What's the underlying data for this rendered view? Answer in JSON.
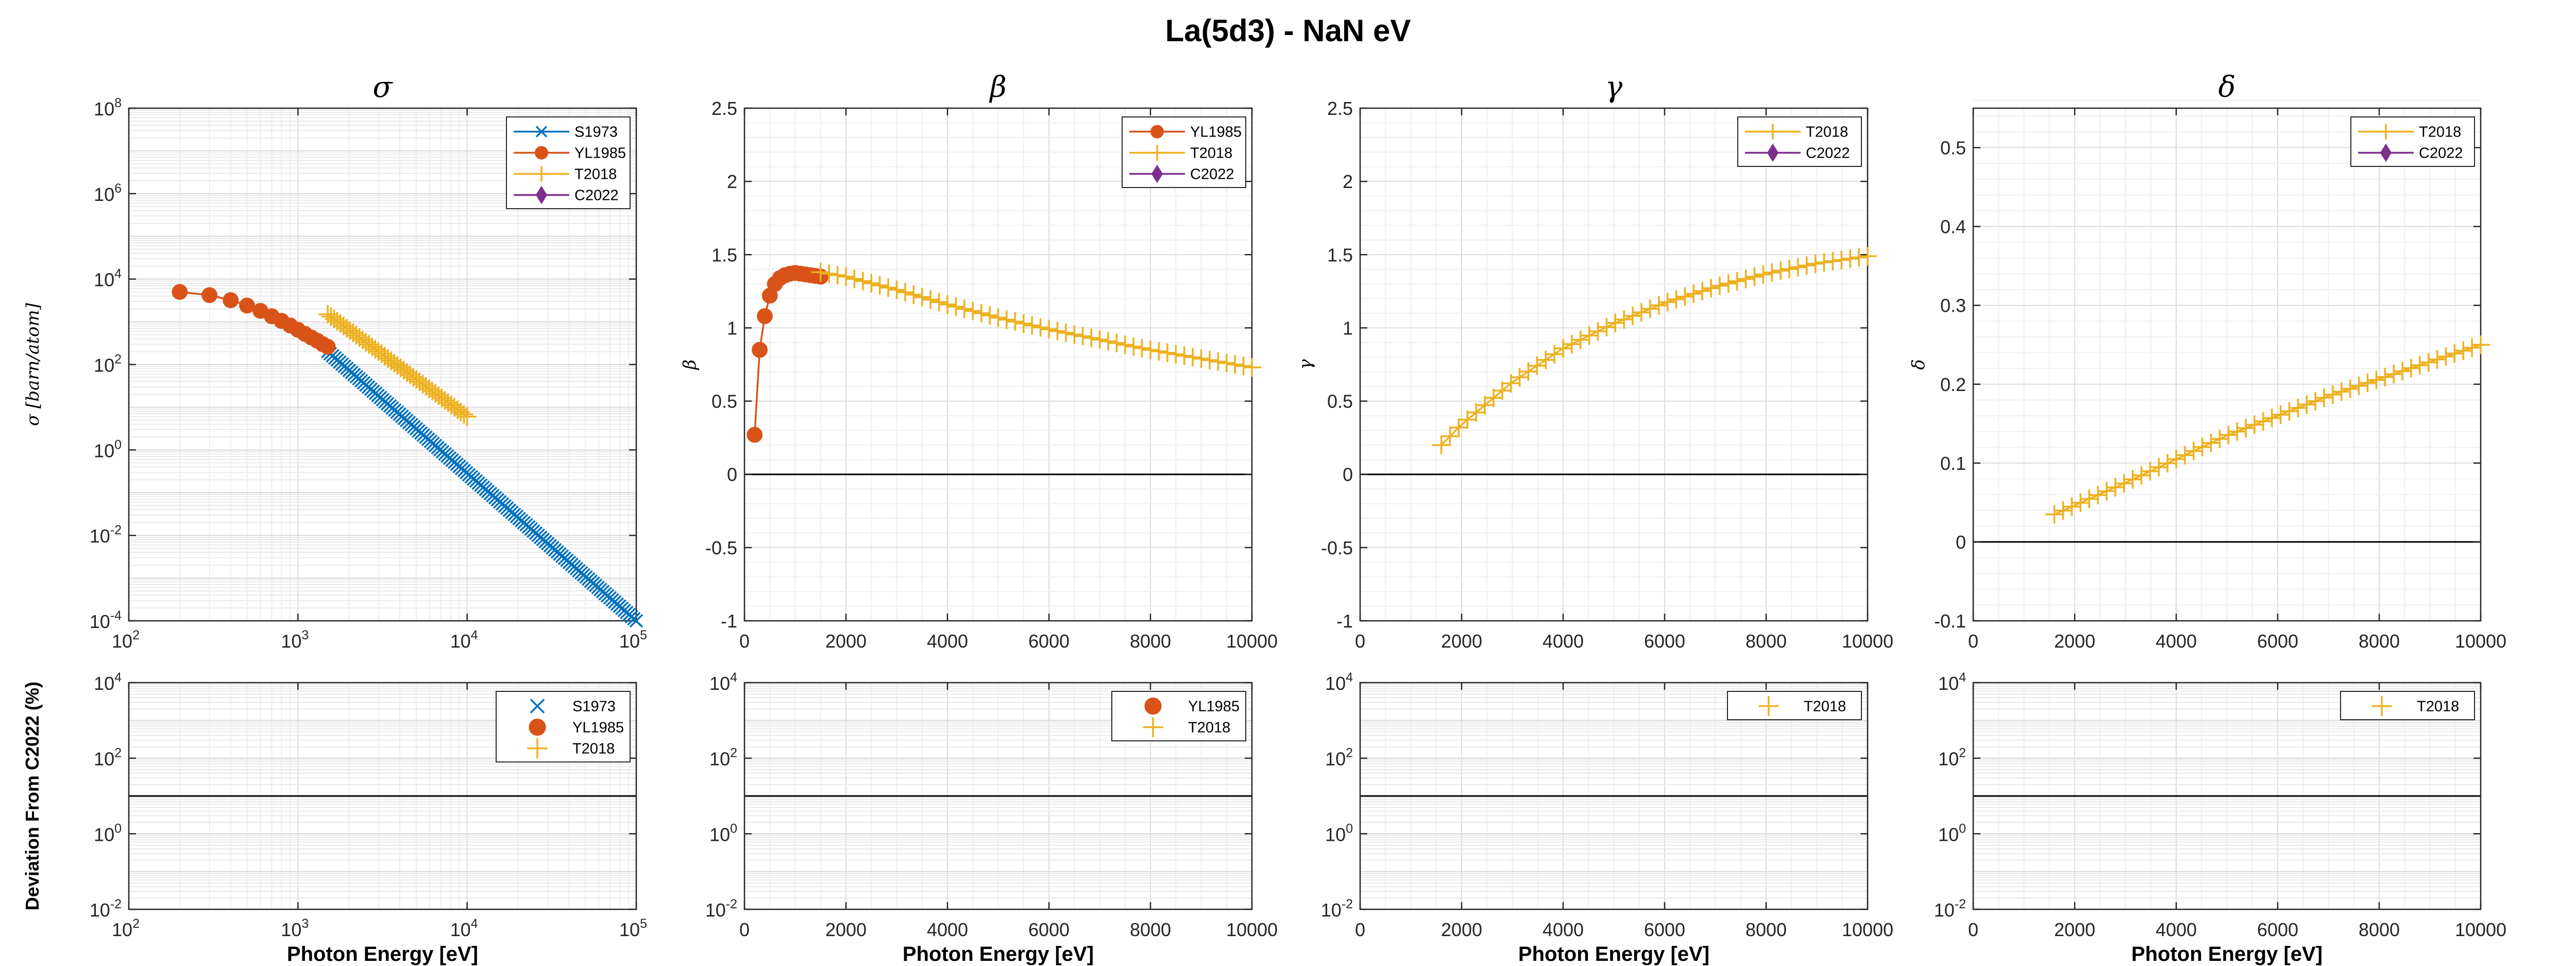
{
  "figure": {
    "title": "La(5d3) - NaN eV"
  },
  "colors": {
    "S1973": "#0072BD",
    "YL1985": "#D95319",
    "T2018": "#EDB120",
    "C2022": "#7E2F8E"
  },
  "chart_data": [
    {
      "id": "sigma",
      "type": "line",
      "title": "σ",
      "ylabel": "σ [barn/atom]",
      "xlabel": "",
      "xscale": "log",
      "yscale": "log",
      "xlim": [
        100,
        100000
      ],
      "ylim": [
        0.0001,
        100000000
      ],
      "xticks": [
        {
          "base": "10",
          "exp": "2"
        },
        {
          "base": "10",
          "exp": "3"
        },
        {
          "base": "10",
          "exp": "4"
        },
        {
          "base": "10",
          "exp": "5"
        }
      ],
      "yticks": [
        {
          "base": "10",
          "exp": "-4"
        },
        {
          "base": "10",
          "exp": "-2"
        },
        {
          "base": "10",
          "exp": "0"
        },
        {
          "base": "10",
          "exp": "2"
        },
        {
          "base": "10",
          "exp": "4"
        },
        {
          "base": "10",
          "exp": "6"
        },
        {
          "base": "10",
          "exp": "8"
        }
      ],
      "grid": true,
      "legend_position": "top-right",
      "series": [
        {
          "name": "S1973",
          "color": "#0072BD",
          "marker": "x",
          "line": true,
          "generator": "powerlaw",
          "x": [
            1500,
            100000
          ],
          "y": [
            200,
            0.0001
          ],
          "n": 130
        },
        {
          "name": "YL1985",
          "color": "#D95319",
          "marker": "o",
          "line": true,
          "x": [
            200,
            300,
            400,
            500,
            600,
            700,
            800,
            900,
            1000,
            1100,
            1200,
            1300,
            1400,
            1500
          ],
          "y": [
            5000,
            4200,
            3200,
            2400,
            1800,
            1350,
            1050,
            820,
            650,
            520,
            430,
            360,
            300,
            260
          ]
        },
        {
          "name": "T2018",
          "color": "#EDB120",
          "marker": "+",
          "line": true,
          "generator": "powerlaw",
          "x": [
            1500,
            10000
          ],
          "y": [
            1500,
            6
          ],
          "n": 45
        },
        {
          "name": "C2022",
          "color": "#7E2F8E",
          "marker": "d",
          "line": true,
          "x": [],
          "y": []
        }
      ]
    },
    {
      "id": "beta",
      "type": "line",
      "title": "β",
      "ylabel": "β",
      "xlabel": "",
      "xscale": "linear",
      "yscale": "linear",
      "xlim": [
        0,
        10000
      ],
      "ylim": [
        -1,
        2.5
      ],
      "xticks": [
        "0",
        "2000",
        "4000",
        "6000",
        "8000",
        "10000"
      ],
      "yticks": [
        "-1",
        "-0.5",
        "0",
        "0.5",
        "1",
        "1.5",
        "2",
        "2.5"
      ],
      "zero_line": 0,
      "grid": true,
      "legend_position": "top-right",
      "series": [
        {
          "name": "YL1985",
          "color": "#D95319",
          "marker": "o",
          "line": true,
          "x": [
            200,
            300,
            400,
            500,
            600,
            700,
            800,
            900,
            1000,
            1100,
            1200,
            1300,
            1400,
            1500
          ],
          "y": [
            0.27,
            0.85,
            1.08,
            1.22,
            1.3,
            1.34,
            1.36,
            1.37,
            1.375,
            1.37,
            1.365,
            1.36,
            1.355,
            1.35
          ]
        },
        {
          "name": "T2018",
          "color": "#EDB120",
          "marker": "+",
          "line": true,
          "generator": "table",
          "xs": [
            1500,
            2000,
            3000,
            4000,
            5000,
            6000,
            7000,
            8000,
            9000,
            10000
          ],
          "ys": [
            1.38,
            1.35,
            1.26,
            1.16,
            1.07,
            0.99,
            0.92,
            0.85,
            0.79,
            0.73
          ],
          "n": 52
        },
        {
          "name": "C2022",
          "color": "#7E2F8E",
          "marker": "d",
          "line": true,
          "x": [],
          "y": []
        }
      ]
    },
    {
      "id": "gamma",
      "type": "line",
      "title": "γ",
      "ylabel": "γ",
      "xlabel": "",
      "xscale": "linear",
      "yscale": "linear",
      "xlim": [
        0,
        10000
      ],
      "ylim": [
        -1,
        2.5
      ],
      "xticks": [
        "0",
        "2000",
        "4000",
        "6000",
        "8000",
        "10000"
      ],
      "yticks": [
        "-1",
        "-0.5",
        "0",
        "0.5",
        "1",
        "1.5",
        "2",
        "2.5"
      ],
      "zero_line": 0,
      "grid": true,
      "legend_position": "top-right",
      "series": [
        {
          "name": "T2018",
          "color": "#EDB120",
          "marker": "+",
          "line": true,
          "generator": "table",
          "xs": [
            1600,
            2000,
            3000,
            4000,
            5000,
            6000,
            7000,
            8000,
            9000,
            10000
          ],
          "ys": [
            0.2,
            0.34,
            0.63,
            0.86,
            1.03,
            1.17,
            1.28,
            1.37,
            1.44,
            1.49
          ],
          "n": 50
        },
        {
          "name": "C2022",
          "color": "#7E2F8E",
          "marker": "d",
          "line": true,
          "x": [],
          "y": []
        }
      ]
    },
    {
      "id": "delta",
      "type": "line",
      "title": "δ",
      "ylabel": "δ",
      "xlabel": "",
      "xscale": "linear",
      "yscale": "linear",
      "xlim": [
        0,
        10000
      ],
      "ylim": [
        -0.1,
        0.55
      ],
      "xticks": [
        "0",
        "2000",
        "4000",
        "6000",
        "8000",
        "10000"
      ],
      "yticks": [
        "-0.1",
        "0",
        "0.1",
        "0.2",
        "0.3",
        "0.4",
        "0.5"
      ],
      "ytick_values": [
        -0.1,
        0,
        0.1,
        0.2,
        0.3,
        0.4,
        0.5
      ],
      "zero_line": 0,
      "grid": true,
      "legend_position": "top-right",
      "series": [
        {
          "name": "T2018",
          "color": "#EDB120",
          "marker": "+",
          "line": true,
          "generator": "table",
          "xs": [
            1600,
            3000,
            5000,
            7000,
            10000
          ],
          "ys": [
            0.035,
            0.075,
            0.135,
            0.185,
            0.25
          ],
          "n": 50
        },
        {
          "name": "C2022",
          "color": "#7E2F8E",
          "marker": "d",
          "line": true,
          "x": [],
          "y": []
        }
      ]
    },
    {
      "id": "dev-sigma",
      "type": "scatter",
      "title": "",
      "ylabel": "Deviation From C2022 (%)",
      "xlabel": "Photon Energy [eV]",
      "xscale": "log",
      "yscale": "log",
      "xlim": [
        100,
        100000
      ],
      "ylim": [
        0.01,
        10000
      ],
      "xticks": [
        {
          "base": "10",
          "exp": "2"
        },
        {
          "base": "10",
          "exp": "3"
        },
        {
          "base": "10",
          "exp": "4"
        },
        {
          "base": "10",
          "exp": "5"
        }
      ],
      "yticks": [
        {
          "base": "10",
          "exp": "-2"
        },
        {
          "base": "10",
          "exp": "0"
        },
        {
          "base": "10",
          "exp": "2"
        },
        {
          "base": "10",
          "exp": "4"
        }
      ],
      "zero_line": 10,
      "grid": true,
      "legend_position": "top-right",
      "series": [
        {
          "name": "S1973",
          "color": "#0072BD",
          "marker": "x",
          "line": false,
          "x": [],
          "y": []
        },
        {
          "name": "YL1985",
          "color": "#D95319",
          "marker": "o",
          "line": false,
          "x": [],
          "y": []
        },
        {
          "name": "T2018",
          "color": "#EDB120",
          "marker": "+",
          "line": false,
          "x": [],
          "y": []
        }
      ]
    },
    {
      "id": "dev-beta",
      "type": "scatter",
      "title": "",
      "ylabel": "",
      "xlabel": "Photon Energy [eV]",
      "xscale": "linear",
      "yscale": "log",
      "xlim": [
        0,
        10000
      ],
      "ylim": [
        0.01,
        10000
      ],
      "xticks": [
        "0",
        "2000",
        "4000",
        "6000",
        "8000",
        "10000"
      ],
      "yticks": [
        {
          "base": "10",
          "exp": "-2"
        },
        {
          "base": "10",
          "exp": "0"
        },
        {
          "base": "10",
          "exp": "2"
        },
        {
          "base": "10",
          "exp": "4"
        }
      ],
      "zero_line": 10,
      "grid": true,
      "legend_position": "top-right",
      "series": [
        {
          "name": "YL1985",
          "color": "#D95319",
          "marker": "o",
          "line": false,
          "x": [],
          "y": []
        },
        {
          "name": "T2018",
          "color": "#EDB120",
          "marker": "+",
          "line": false,
          "x": [],
          "y": []
        }
      ]
    },
    {
      "id": "dev-gamma",
      "type": "scatter",
      "title": "",
      "ylabel": "",
      "xlabel": "Photon Energy [eV]",
      "xscale": "linear",
      "yscale": "log",
      "xlim": [
        0,
        10000
      ],
      "ylim": [
        0.01,
        10000
      ],
      "xticks": [
        "0",
        "2000",
        "4000",
        "6000",
        "8000",
        "10000"
      ],
      "yticks": [
        {
          "base": "10",
          "exp": "-2"
        },
        {
          "base": "10",
          "exp": "0"
        },
        {
          "base": "10",
          "exp": "2"
        },
        {
          "base": "10",
          "exp": "4"
        }
      ],
      "zero_line": 10,
      "grid": true,
      "legend_position": "top-right",
      "series": [
        {
          "name": "T2018",
          "color": "#EDB120",
          "marker": "+",
          "line": false,
          "x": [],
          "y": []
        }
      ]
    },
    {
      "id": "dev-delta",
      "type": "scatter",
      "title": "",
      "ylabel": "",
      "xlabel": "Photon Energy [eV]",
      "xscale": "linear",
      "yscale": "log",
      "xlim": [
        0,
        10000
      ],
      "ylim": [
        0.01,
        10000
      ],
      "xticks": [
        "0",
        "2000",
        "4000",
        "6000",
        "8000",
        "10000"
      ],
      "yticks": [
        {
          "base": "10",
          "exp": "-2"
        },
        {
          "base": "10",
          "exp": "0"
        },
        {
          "base": "10",
          "exp": "2"
        },
        {
          "base": "10",
          "exp": "4"
        }
      ],
      "zero_line": 10,
      "grid": true,
      "legend_position": "top-right",
      "series": [
        {
          "name": "T2018",
          "color": "#EDB120",
          "marker": "+",
          "line": false,
          "x": [],
          "y": []
        }
      ]
    }
  ]
}
